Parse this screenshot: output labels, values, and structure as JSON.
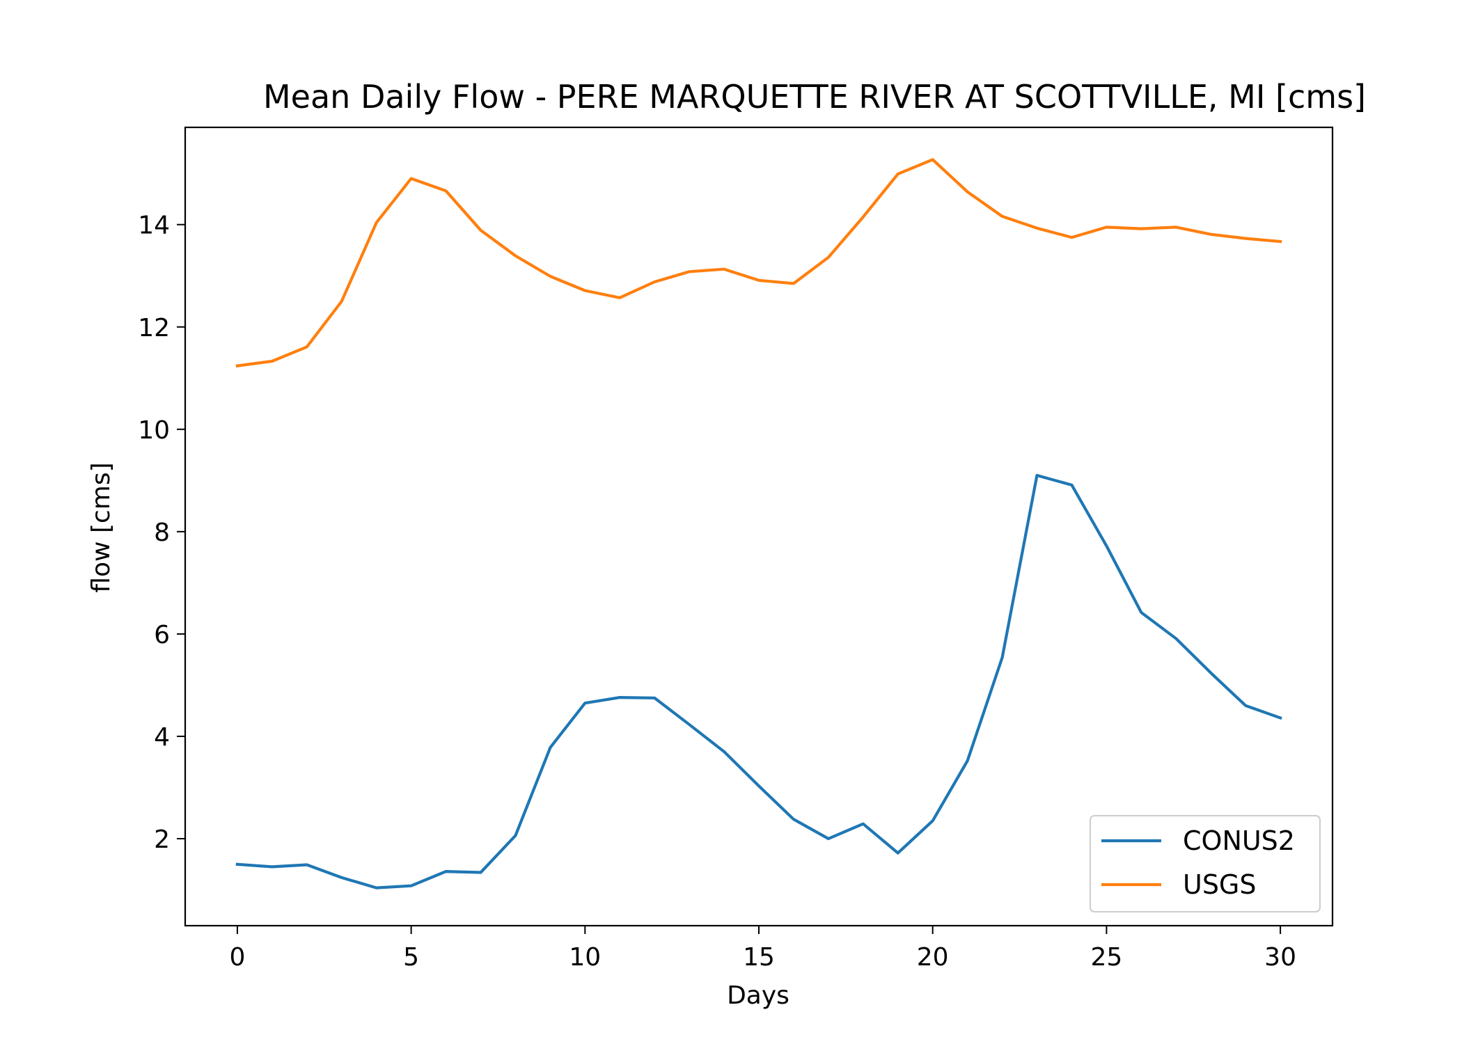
{
  "chart_data": {
    "type": "line",
    "title": "Mean Daily Flow - PERE MARQUETTE RIVER AT SCOTTVILLE, MI [cms]",
    "xlabel": "Days",
    "ylabel": "flow [cms]",
    "xlim": [
      -1.5,
      31.5
    ],
    "ylim": [
      0.3,
      15.9
    ],
    "xticks": [
      0,
      5,
      10,
      15,
      20,
      25,
      30
    ],
    "yticks": [
      2,
      4,
      6,
      8,
      10,
      12,
      14
    ],
    "grid": false,
    "legend_position": "bottom-right",
    "x": [
      0,
      1,
      2,
      3,
      4,
      5,
      6,
      7,
      8,
      9,
      10,
      11,
      12,
      13,
      14,
      15,
      16,
      17,
      18,
      19,
      20,
      21,
      22,
      23,
      24,
      25,
      26,
      27,
      28,
      29,
      30
    ],
    "series": [
      {
        "name": "CONUS2",
        "color": "#1f77b4",
        "values": [
          1.5,
          1.45,
          1.49,
          1.24,
          1.04,
          1.08,
          1.36,
          1.34,
          2.06,
          3.78,
          4.65,
          4.76,
          4.75,
          4.23,
          3.7,
          3.03,
          2.38,
          2.0,
          2.29,
          1.72,
          2.35,
          3.52,
          5.54,
          9.1,
          8.91,
          7.72,
          6.42,
          5.91,
          5.24,
          4.6,
          4.36
        ]
      },
      {
        "name": "USGS",
        "color": "#ff7f0e",
        "values": [
          11.24,
          11.33,
          11.61,
          12.5,
          14.04,
          14.9,
          14.66,
          13.89,
          13.39,
          12.99,
          12.71,
          12.57,
          12.88,
          13.08,
          13.13,
          12.91,
          12.85,
          13.36,
          14.15,
          14.99,
          15.27,
          14.64,
          14.16,
          13.93,
          13.75,
          13.95,
          13.92,
          13.95,
          13.81,
          13.73,
          13.67
        ]
      }
    ]
  }
}
